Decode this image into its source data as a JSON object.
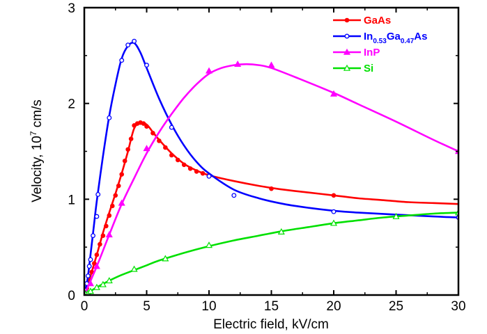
{
  "chart_data": {
    "type": "line",
    "xlabel": "Electric field, kV/cm",
    "ylabel_main": "Velocity, 10",
    "ylabel_sup": "7",
    "ylabel_unit": " cm/s",
    "xlim": [
      0,
      30
    ],
    "ylim": [
      0,
      3
    ],
    "x_ticks": [
      0,
      5,
      10,
      15,
      20,
      25,
      30
    ],
    "y_ticks": [
      0,
      1,
      2,
      3
    ],
    "x_tick_labels": [
      "0",
      "5",
      "10",
      "15",
      "20",
      "25",
      "30"
    ],
    "y_tick_labels": [
      "0",
      "1",
      "2",
      "3"
    ],
    "grid": false,
    "legend_position": "top-right",
    "series": [
      {
        "name": "GaAs",
        "color": "#ff0000",
        "marker": "filled-circle",
        "curve": [
          [
            0,
            0
          ],
          [
            0.5,
            0.2
          ],
          [
            1,
            0.42
          ],
          [
            1.5,
            0.65
          ],
          [
            2,
            0.86
          ],
          [
            2.5,
            1.06
          ],
          [
            3,
            1.27
          ],
          [
            3.5,
            1.5
          ],
          [
            4,
            1.74
          ],
          [
            4.5,
            1.8
          ],
          [
            5,
            1.78
          ],
          [
            5.5,
            1.7
          ],
          [
            6,
            1.62
          ],
          [
            7,
            1.48
          ],
          [
            8,
            1.37
          ],
          [
            9,
            1.3
          ],
          [
            10,
            1.25
          ],
          [
            12,
            1.19
          ],
          [
            14,
            1.14
          ],
          [
            16,
            1.1
          ],
          [
            18,
            1.07
          ],
          [
            20,
            1.04
          ],
          [
            22,
            1.01
          ],
          [
            24,
            0.99
          ],
          [
            26,
            0.97
          ],
          [
            28,
            0.96
          ],
          [
            30,
            0.95
          ]
        ],
        "markers": [
          [
            0.2,
            0.07
          ],
          [
            0.4,
            0.15
          ],
          [
            0.6,
            0.24
          ],
          [
            0.8,
            0.33
          ],
          [
            1,
            0.42
          ],
          [
            1.25,
            0.53
          ],
          [
            1.5,
            0.62
          ],
          [
            1.75,
            0.72
          ],
          [
            2,
            0.83
          ],
          [
            2.25,
            0.93
          ],
          [
            2.5,
            1.04
          ],
          [
            2.75,
            1.14
          ],
          [
            3,
            1.26
          ],
          [
            3.25,
            1.4
          ],
          [
            3.5,
            1.52
          ],
          [
            3.75,
            1.63
          ],
          [
            4,
            1.77
          ],
          [
            4.25,
            1.79
          ],
          [
            4.5,
            1.8
          ],
          [
            4.75,
            1.79
          ],
          [
            5,
            1.76
          ],
          [
            5.5,
            1.69
          ],
          [
            6,
            1.61
          ],
          [
            6.5,
            1.54
          ],
          [
            7,
            1.46
          ],
          [
            7.5,
            1.41
          ],
          [
            8,
            1.36
          ],
          [
            8.5,
            1.32
          ],
          [
            9,
            1.29
          ],
          [
            9.5,
            1.27
          ],
          [
            10,
            1.25
          ],
          [
            15,
            1.11
          ],
          [
            20,
            1.04
          ]
        ]
      },
      {
        "name": "In0.53Ga0.47As",
        "label_parts": [
          "In",
          "0.53",
          "Ga",
          "0.47",
          "As"
        ],
        "color": "#0000ff",
        "marker": "open-circle",
        "curve": [
          [
            0,
            0
          ],
          [
            0.25,
            0.16
          ],
          [
            0.5,
            0.42
          ],
          [
            0.75,
            0.7
          ],
          [
            1,
            0.98
          ],
          [
            1.5,
            1.45
          ],
          [
            2,
            1.87
          ],
          [
            2.5,
            2.2
          ],
          [
            3,
            2.47
          ],
          [
            3.5,
            2.6
          ],
          [
            4,
            2.63
          ],
          [
            4.5,
            2.53
          ],
          [
            5,
            2.37
          ],
          [
            6,
            2.05
          ],
          [
            7,
            1.78
          ],
          [
            8,
            1.56
          ],
          [
            9,
            1.39
          ],
          [
            10,
            1.27
          ],
          [
            12,
            1.1
          ],
          [
            14,
            1.01
          ],
          [
            16,
            0.95
          ],
          [
            18,
            0.91
          ],
          [
            20,
            0.88
          ],
          [
            22,
            0.86
          ],
          [
            25,
            0.84
          ],
          [
            28,
            0.82
          ],
          [
            30,
            0.81
          ]
        ],
        "markers": [
          [
            0.1,
            0.05
          ],
          [
            0.2,
            0.12
          ],
          [
            0.3,
            0.2
          ],
          [
            0.4,
            0.3
          ],
          [
            0.5,
            0.37
          ],
          [
            0.7,
            0.62
          ],
          [
            1,
            0.82
          ],
          [
            1.1,
            1.05
          ],
          [
            2,
            1.85
          ],
          [
            3,
            2.45
          ],
          [
            3.5,
            2.61
          ],
          [
            4,
            2.65
          ],
          [
            5,
            2.4
          ],
          [
            7,
            1.75
          ],
          [
            10,
            1.24
          ],
          [
            12,
            1.04
          ],
          [
            20,
            0.87
          ],
          [
            30,
            0.81
          ]
        ]
      },
      {
        "name": "InP",
        "color": "#ff00ff",
        "marker": "filled-triangle",
        "curve": [
          [
            0,
            0
          ],
          [
            1,
            0.3
          ],
          [
            2,
            0.63
          ],
          [
            3,
            0.95
          ],
          [
            4,
            1.22
          ],
          [
            5,
            1.48
          ],
          [
            6,
            1.7
          ],
          [
            7,
            1.89
          ],
          [
            8,
            2.06
          ],
          [
            9,
            2.2
          ],
          [
            10,
            2.31
          ],
          [
            11,
            2.37
          ],
          [
            12,
            2.4
          ],
          [
            13,
            2.41
          ],
          [
            14,
            2.4
          ],
          [
            15,
            2.37
          ],
          [
            17,
            2.27
          ],
          [
            20,
            2.11
          ],
          [
            22,
            1.99
          ],
          [
            25,
            1.81
          ],
          [
            28,
            1.62
          ],
          [
            30,
            1.5
          ]
        ],
        "markers": [
          [
            0.2,
            0.04
          ],
          [
            0.5,
            0.12
          ],
          [
            1,
            0.3
          ],
          [
            2,
            0.63
          ],
          [
            3,
            0.96
          ],
          [
            5,
            1.53
          ],
          [
            10,
            2.34
          ],
          [
            12.3,
            2.41
          ],
          [
            15,
            2.4
          ],
          [
            20,
            2.1
          ],
          [
            30,
            1.5
          ]
        ]
      },
      {
        "name": "Si",
        "color": "#00e000",
        "marker": "open-triangle",
        "curve": [
          [
            0,
            0
          ],
          [
            1,
            0.08
          ],
          [
            2,
            0.15
          ],
          [
            3,
            0.21
          ],
          [
            4,
            0.26
          ],
          [
            5,
            0.31
          ],
          [
            6,
            0.36
          ],
          [
            8,
            0.44
          ],
          [
            10,
            0.51
          ],
          [
            12,
            0.57
          ],
          [
            14,
            0.62
          ],
          [
            16,
            0.67
          ],
          [
            18,
            0.71
          ],
          [
            20,
            0.75
          ],
          [
            22,
            0.78
          ],
          [
            24,
            0.81
          ],
          [
            26,
            0.83
          ],
          [
            28,
            0.85
          ],
          [
            30,
            0.86
          ]
        ],
        "markers": [
          [
            0.1,
            0.01
          ],
          [
            0.3,
            0.02
          ],
          [
            0.5,
            0.04
          ],
          [
            1,
            0.08
          ],
          [
            1.5,
            0.11
          ],
          [
            2,
            0.15
          ],
          [
            4,
            0.27
          ],
          [
            6.5,
            0.38
          ],
          [
            10,
            0.52
          ],
          [
            15.8,
            0.66
          ],
          [
            20,
            0.75
          ],
          [
            25,
            0.82
          ],
          [
            30,
            0.86
          ]
        ]
      }
    ]
  }
}
